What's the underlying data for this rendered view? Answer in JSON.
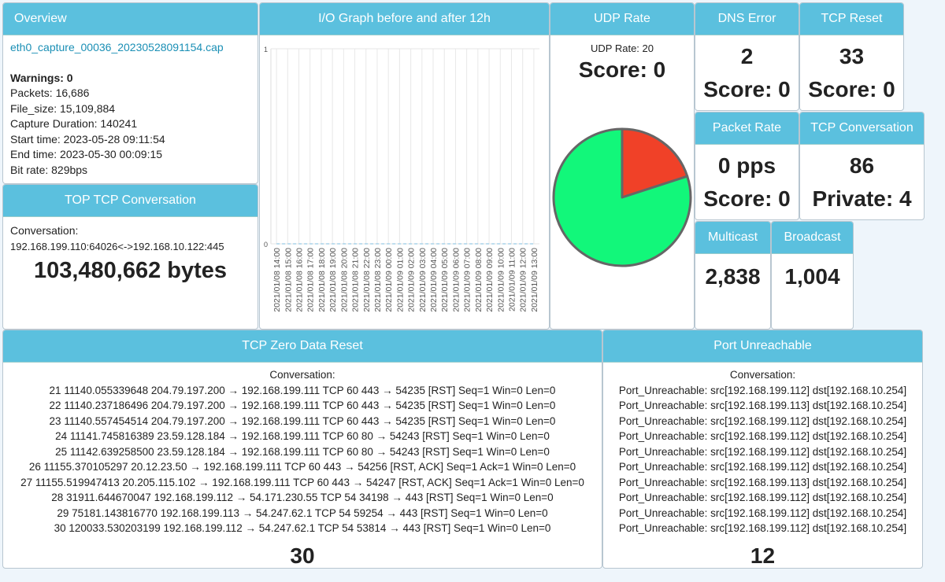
{
  "overview": {
    "title": "Overview",
    "file": "eth0_capture_00036_20230528091154.cap",
    "warnings": "Warnings: 0",
    "lines": [
      "Packets: 16,686",
      "File_size: 15,109,884",
      "Capture Duration: 140241",
      "Start time: 2023-05-28 09:11:54",
      "End time: 2023-05-30 00:09:15",
      "Bit rate: 829bps"
    ]
  },
  "top_tcp": {
    "title": "TOP TCP Conversation",
    "label": "Conversation:",
    "conversation": "192.168.199.110:64026<->192.168.10.122:445",
    "bytes": "103,480,662 bytes"
  },
  "udp_rate": {
    "label": "UDP Rate: 20",
    "score": "Score: 0"
  },
  "dns_error": {
    "title": "DNS Error",
    "value": "2",
    "score": "Score: 0"
  },
  "tcp_reset": {
    "title": "TCP Reset",
    "value": "33",
    "score": "Score: 0"
  },
  "packet_rate": {
    "title": "Packet Rate",
    "value": "0 pps",
    "score": "Score: 0"
  },
  "tcp_conversation": {
    "title": "TCP Conversation",
    "value": "86",
    "score": "Private: 4"
  },
  "multicast": {
    "title": "Multicast",
    "value": "2,838"
  },
  "broadcast": {
    "title": "Broadcast",
    "value": "1,004"
  },
  "zero_reset": {
    "title": "TCP Zero Data Reset",
    "label": "Conversation:",
    "count": "30",
    "lines": [
      "21 11140.055339648 204.79.197.200 → 192.168.199.111 TCP 60 443 → 54235 [RST] Seq=1 Win=0 Len=0",
      "22 11140.237186496 204.79.197.200 → 192.168.199.111 TCP 60 443 → 54235 [RST] Seq=1 Win=0 Len=0",
      "23 11140.557454514 204.79.197.200 → 192.168.199.111 TCP 60 443 → 54235 [RST] Seq=1 Win=0 Len=0",
      "24 11141.745816389 23.59.128.184 → 192.168.199.111 TCP 60 80 → 54243 [RST] Seq=1 Win=0 Len=0",
      "25 11142.639258500 23.59.128.184 → 192.168.199.111 TCP 60 80 → 54243 [RST] Seq=1 Win=0 Len=0",
      "26 11155.370105297 20.12.23.50 → 192.168.199.111 TCP 60 443 → 54256 [RST, ACK] Seq=1 Ack=1 Win=0 Len=0",
      "27 11155.519947413 20.205.115.102 → 192.168.199.111 TCP 60 443 → 54247 [RST, ACK] Seq=1 Ack=1 Win=0 Len=0",
      "28 31911.644670047 192.168.199.112 → 54.171.230.55 TCP 54 34198 → 443 [RST] Seq=1 Win=0 Len=0",
      "29 75181.143816770 192.168.199.113 → 54.247.62.1 TCP 54 59254 → 443 [RST] Seq=1 Win=0 Len=0",
      "30 120033.530203199 192.168.199.112 → 54.247.62.1 TCP 54 53814 → 443 [RST] Seq=1 Win=0 Len=0"
    ]
  },
  "port_unreachable": {
    "title": "Port Unreachable",
    "label": "Conversation:",
    "count": "12",
    "lines": [
      "Port_Unreachable: src[192.168.199.112] dst[192.168.10.254]",
      "Port_Unreachable: src[192.168.199.113] dst[192.168.10.254]",
      "Port_Unreachable: src[192.168.199.112] dst[192.168.10.254]",
      "Port_Unreachable: src[192.168.199.112] dst[192.168.10.254]",
      "Port_Unreachable: src[192.168.199.112] dst[192.168.10.254]",
      "Port_Unreachable: src[192.168.199.112] dst[192.168.10.254]",
      "Port_Unreachable: src[192.168.199.113] dst[192.168.10.254]",
      "Port_Unreachable: src[192.168.199.112] dst[192.168.10.254]",
      "Port_Unreachable: src[192.168.199.112] dst[192.168.10.254]",
      "Port_Unreachable: src[192.168.199.112] dst[192.168.10.254]"
    ]
  },
  "chart_data": [
    {
      "type": "line",
      "title": "I/O Graph before and after 12h",
      "categories": [
        "2021/01/08 14:00",
        "2021/01/08 15:00",
        "2021/01/08 16:00",
        "2021/01/08 17:00",
        "2021/01/08 18:00",
        "2021/01/08 19:00",
        "2021/01/08 20:00",
        "2021/01/08 21:00",
        "2021/01/08 22:00",
        "2021/01/08 23:00",
        "2021/01/09 00:00",
        "2021/01/09 01:00",
        "2021/01/09 02:00",
        "2021/01/09 03:00",
        "2021/01/09 04:00",
        "2021/01/09 05:00",
        "2021/01/09 06:00",
        "2021/01/09 07:00",
        "2021/01/09 08:00",
        "2021/01/09 09:00",
        "2021/01/09 10:00",
        "2021/01/09 11:00",
        "2021/01/09 12:00",
        "2021/01/09 13:00"
      ],
      "values": [
        0,
        0,
        0,
        0,
        0,
        0,
        0,
        0,
        0,
        0,
        0,
        0,
        0,
        0,
        0,
        0,
        0,
        0,
        0,
        0,
        0,
        0,
        0,
        0
      ],
      "color": "#a9d3ea",
      "ylim": [
        0,
        1
      ],
      "yticks": [
        0,
        1
      ],
      "grid": true
    },
    {
      "type": "pie",
      "title": "UDP Rate",
      "values": [
        20,
        80
      ],
      "colors": [
        "#f04128",
        "#12f77a"
      ]
    }
  ]
}
